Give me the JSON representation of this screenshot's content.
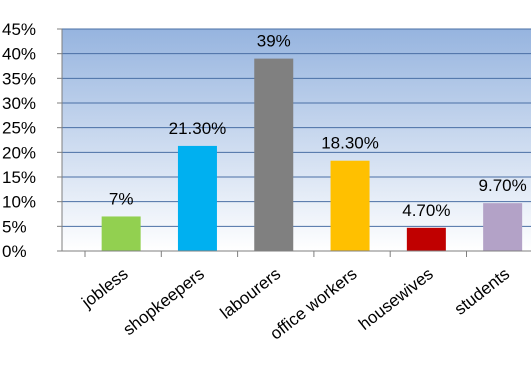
{
  "chart_data": {
    "type": "bar",
    "categories": [
      "jobless",
      "shopkeepers",
      "labourers",
      "office workers",
      "housewives",
      "students"
    ],
    "values": [
      7,
      21.3,
      39,
      18.3,
      4.7,
      9.7
    ],
    "data_labels": [
      "7%",
      "21.30%",
      "39%",
      "18.30%",
      "4.70%",
      "9.70%"
    ],
    "bar_colors": [
      "#92d050",
      "#00b0f0",
      "#808080",
      "#ffc000",
      "#c00000",
      "#b3a2c7"
    ],
    "ylim": [
      0,
      45
    ],
    "ytick_values": [
      0,
      5,
      10,
      15,
      20,
      25,
      30,
      35,
      40,
      45
    ],
    "ytick_labels": [
      "0%",
      "5%",
      "10%",
      "15%",
      "20%",
      "25%",
      "30%",
      "35%",
      "40%",
      "45%"
    ],
    "plot_background": "gradient blue",
    "grid": true,
    "legend": "none"
  }
}
